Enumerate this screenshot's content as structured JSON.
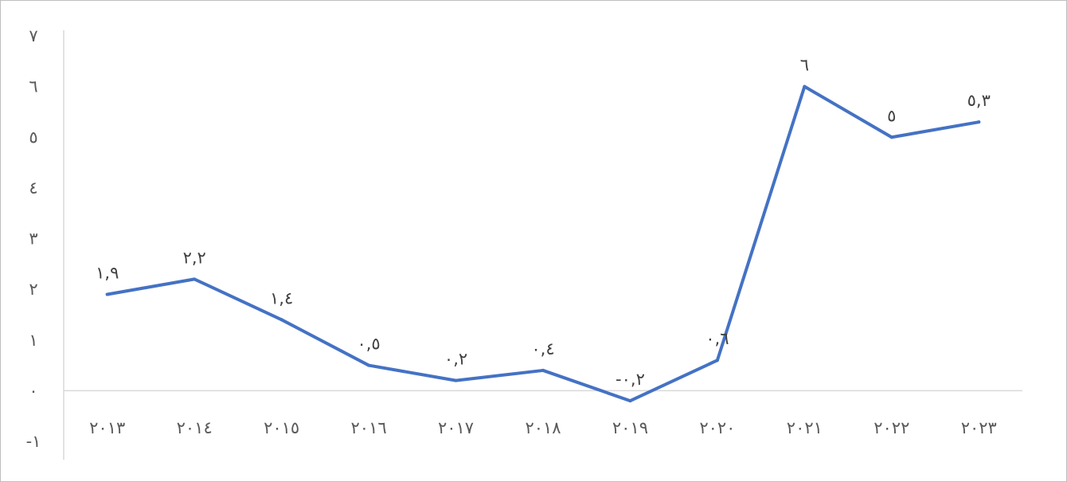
{
  "chart_data": {
    "type": "line",
    "categories": [
      "٢٠١٣",
      "٢٠١٤",
      "٢٠١٥",
      "٢٠١٦",
      "٢٠١٧",
      "٢٠١٨",
      "٢٠١٩",
      "٢٠٢٠",
      "٢٠٢١",
      "٢٠٢٢",
      "٢٠٢٣"
    ],
    "series": [
      {
        "values": [
          1.9,
          2.2,
          1.4,
          0.5,
          0.2,
          0.4,
          -0.2,
          0.6,
          6,
          5,
          5.3
        ],
        "labels": [
          "١,٩",
          "٢,٢",
          "١,٤",
          "٠,٥",
          "٠,٢",
          "٠,٤",
          "-٠,٢",
          "٠,٦",
          "٦",
          "٥",
          "٥,٣"
        ],
        "color": "#4472C4"
      }
    ],
    "y_ticks": [
      -1,
      0,
      1,
      2,
      3,
      4,
      5,
      6,
      7
    ],
    "y_tick_labels": [
      "-١",
      "٠",
      "١",
      "٢",
      "٣",
      "٤",
      "٥",
      "٦",
      "٧"
    ],
    "ylim": [
      -1,
      7
    ],
    "grid": false,
    "zero_line_color": "#d9d9d9",
    "title": "",
    "xlabel": "",
    "ylabel": ""
  }
}
